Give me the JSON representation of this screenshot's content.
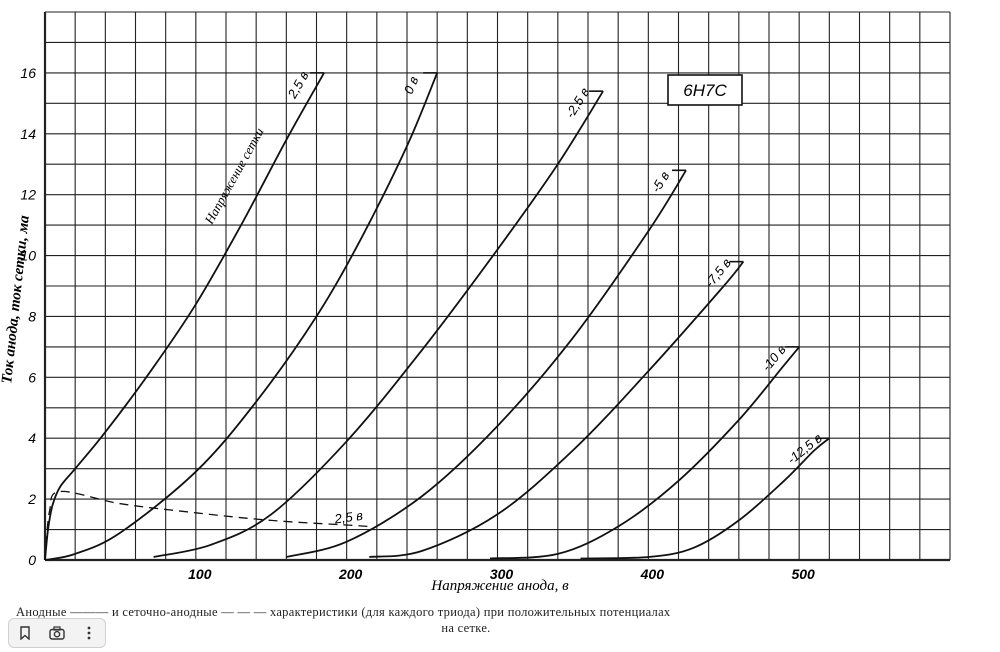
{
  "chart_data": {
    "type": "line",
    "title": "6Н7С",
    "xlabel": "Напряжение анода, в",
    "ylabel": "Ток анода, ток сетки, ма",
    "xlim": [
      0,
      600
    ],
    "ylim": [
      0,
      18
    ],
    "x_ticks": [
      "100",
      "200",
      "300",
      "400",
      "500"
    ],
    "y_ticks": [
      "0",
      "2",
      "4",
      "6",
      "8",
      "10",
      "12",
      "14",
      "16"
    ],
    "grid": true,
    "series_note": "Напряжение сетки",
    "series": [
      {
        "name": "2,5 в",
        "style": "solid",
        "x": [
          0,
          2,
          5,
          10,
          20,
          40,
          70,
          100,
          130,
          160,
          185
        ],
        "y": [
          0,
          1.0,
          1.8,
          2.4,
          3.0,
          4.2,
          6.2,
          8.4,
          11.0,
          13.8,
          16.0
        ]
      },
      {
        "name": "0 в",
        "style": "solid",
        "x": [
          0,
          20,
          50,
          100,
          140,
          180,
          210,
          240,
          260
        ],
        "y": [
          0,
          0.2,
          0.9,
          2.9,
          5.2,
          8.0,
          10.6,
          13.6,
          16.0
        ]
      },
      {
        "name": "-2,5 в",
        "style": "solid",
        "x": [
          72,
          110,
          150,
          200,
          250,
          300,
          340,
          370
        ],
        "y": [
          0.1,
          0.5,
          1.5,
          3.9,
          6.9,
          10.2,
          13.0,
          15.4
        ]
      },
      {
        "name": "-5 в",
        "style": "solid",
        "x": [
          160,
          200,
          250,
          300,
          350,
          400,
          425
        ],
        "y": [
          0.1,
          0.6,
          2.1,
          4.4,
          7.3,
          10.8,
          12.8
        ]
      },
      {
        "name": "-7,5 в",
        "style": "solid",
        "x": [
          215,
          250,
          300,
          350,
          400,
          450,
          463
        ],
        "y": [
          0.1,
          0.3,
          1.5,
          3.6,
          6.2,
          9.0,
          9.8
        ]
      },
      {
        "name": "-10 в",
        "style": "solid",
        "x": [
          295,
          340,
          380,
          420,
          460,
          490,
          500
        ],
        "y": [
          0.05,
          0.2,
          1.1,
          2.6,
          4.6,
          6.4,
          7.0
        ]
      },
      {
        "name": "-12,5 в",
        "style": "solid",
        "x": [
          355,
          400,
          430,
          460,
          490,
          510,
          520
        ],
        "y": [
          0.05,
          0.1,
          0.4,
          1.3,
          2.6,
          3.6,
          4.0
        ]
      },
      {
        "name": "2,5 в",
        "style": "dashed",
        "kind": "grid-current",
        "x": [
          0,
          3,
          10,
          50,
          100,
          150,
          200,
          215
        ],
        "y": [
          0,
          1.6,
          2.25,
          1.85,
          1.55,
          1.3,
          1.15,
          1.1
        ]
      }
    ]
  },
  "caption": {
    "line1": "Анодные ——— и сеточно-анодные — — — характеристики (для каждого триода) при положительных потенциалах",
    "line2": "на сетке."
  },
  "toolbar": {
    "buttons": [
      {
        "name": "bookmark-icon"
      },
      {
        "name": "camera-icon"
      },
      {
        "name": "more-icon"
      }
    ]
  }
}
